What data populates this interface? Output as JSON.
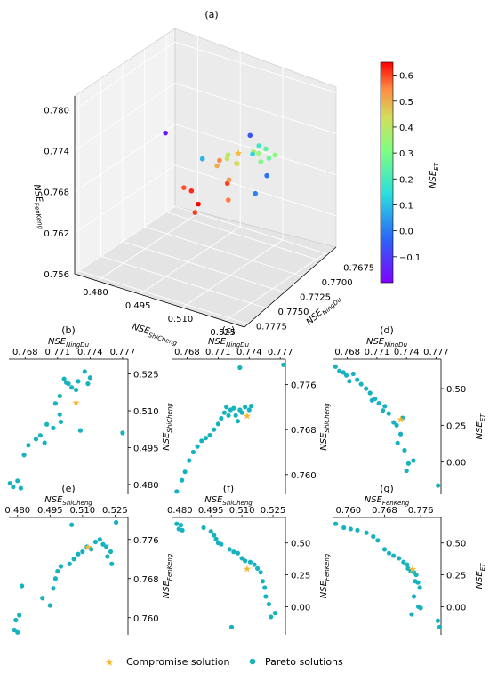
{
  "colors": {
    "pareto": "#16b3bf",
    "compromise": "#f7b731"
  },
  "legend": {
    "compromise": "Compromise solution",
    "pareto": "Pareto solutions",
    "placement": "bottom-center"
  },
  "colorbar": {
    "label": "NSE",
    "label_sub": "ET",
    "ticks": [
      "0.6",
      "0.5",
      "0.4",
      "0.3",
      "0.2",
      "0.1",
      "0.0",
      "−0.1"
    ],
    "range": [
      -0.2,
      0.65
    ],
    "colormap": "rainbow"
  },
  "chart_data": [
    {
      "panel": "(a)",
      "type": "scatter3d",
      "title": "(a)",
      "xlabel": "NSE",
      "xlabel_sub": "ShiCheng",
      "ylabel": "NSE",
      "ylabel_sub": "NingDu",
      "zlabel": "NSE",
      "zlabel_sub": "FenKeng",
      "xticks": [
        "0.480",
        "0.495",
        "0.510",
        "0.525"
      ],
      "yticks": [
        "0.7675",
        "0.7700",
        "0.7725",
        "0.7750",
        "0.7775"
      ],
      "zticks": [
        "0.756",
        "0.762",
        "0.768",
        "0.774",
        "0.780"
      ],
      "xlim": [
        0.472,
        0.532
      ],
      "ylim": [
        0.7665,
        0.778
      ],
      "zlim": [
        0.756,
        0.782
      ],
      "grid": true,
      "color_by": "NSE_ET"
    },
    {
      "panel": "(b)",
      "type": "scatter",
      "title": "(b)",
      "xlabel": "NSE",
      "xlabel_sub": "NingDu",
      "ylabel": "NSE",
      "ylabel_sub": "ShiCheng",
      "xticks": [
        "0.768",
        "0.771",
        "0.774",
        "0.777"
      ],
      "yticks": [
        "0.525",
        "0.510",
        "0.495",
        "0.480"
      ],
      "xlim": [
        0.7665,
        0.7775
      ],
      "ylim": [
        0.476,
        0.531
      ],
      "x_axis_position": "top",
      "y_axis_position": "right",
      "compromise": [
        0.7727,
        0.5135
      ],
      "points": [
        [
          0.7666,
          0.4805
        ],
        [
          0.7669,
          0.479
        ],
        [
          0.7673,
          0.4815
        ],
        [
          0.7676,
          0.4785
        ],
        [
          0.7679,
          0.492
        ],
        [
          0.7683,
          0.496
        ],
        [
          0.769,
          0.4985
        ],
        [
          0.7694,
          0.5
        ],
        [
          0.7698,
          0.497
        ],
        [
          0.77,
          0.5045
        ],
        [
          0.7706,
          0.503
        ],
        [
          0.7712,
          0.5085
        ],
        [
          0.7713,
          0.5055
        ],
        [
          0.7708,
          0.513
        ],
        [
          0.7712,
          0.516
        ],
        [
          0.7716,
          0.523
        ],
        [
          0.7718,
          0.5215
        ],
        [
          0.772,
          0.521
        ],
        [
          0.7723,
          0.5195
        ],
        [
          0.7727,
          0.5185
        ],
        [
          0.7729,
          0.522
        ],
        [
          0.7731,
          0.502
        ],
        [
          0.7735,
          0.526
        ],
        [
          0.774,
          0.5235
        ],
        [
          0.7738,
          0.521
        ],
        [
          0.777,
          0.501
        ]
      ]
    },
    {
      "panel": "(c)",
      "type": "scatter",
      "title": "(c)",
      "xlabel": "NSE",
      "xlabel_sub": "NingDu",
      "ylabel": "NSE",
      "ylabel_sub": "ShiCheng",
      "xticks": [
        "0.768",
        "0.771",
        "0.774",
        "0.777"
      ],
      "yticks": [
        "0.776",
        "0.768",
        "0.760"
      ],
      "xlim": [
        0.7665,
        0.7775
      ],
      "ylim": [
        0.7565,
        0.7805
      ],
      "x_axis_position": "top",
      "y_axis_position": "right",
      "compromise": [
        0.7738,
        0.7705
      ],
      "points": [
        [
          0.767,
          0.757
        ],
        [
          0.7675,
          0.759
        ],
        [
          0.7678,
          0.7605
        ],
        [
          0.7682,
          0.7625
        ],
        [
          0.7686,
          0.764
        ],
        [
          0.769,
          0.765
        ],
        [
          0.7694,
          0.766
        ],
        [
          0.7698,
          0.7665
        ],
        [
          0.7702,
          0.767
        ],
        [
          0.7706,
          0.768
        ],
        [
          0.771,
          0.769
        ],
        [
          0.7713,
          0.77
        ],
        [
          0.7716,
          0.771
        ],
        [
          0.7718,
          0.772
        ],
        [
          0.772,
          0.7705
        ],
        [
          0.7722,
          0.7715
        ],
        [
          0.7725,
          0.7718
        ],
        [
          0.7727,
          0.7705
        ],
        [
          0.7729,
          0.7695
        ],
        [
          0.7731,
          0.7715
        ],
        [
          0.7733,
          0.771
        ],
        [
          0.7736,
          0.772
        ],
        [
          0.774,
          0.7715
        ],
        [
          0.7742,
          0.7722
        ],
        [
          0.7731,
          0.779
        ],
        [
          0.7773,
          0.7795
        ]
      ]
    },
    {
      "panel": "(d)",
      "type": "scatter",
      "title": "(d)",
      "xlabel": "NSE",
      "xlabel_sub": "NingDu",
      "ylabel": "NSE",
      "ylabel_sub": "ET",
      "xticks": [
        "0.768",
        "0.771",
        "0.774",
        "0.777"
      ],
      "yticks": [
        "0.50",
        "0.25",
        "0.00"
      ],
      "xlim": [
        0.7665,
        0.7775
      ],
      "ylim": [
        -0.22,
        0.7
      ],
      "x_axis_position": "top",
      "y_axis_position": "right",
      "compromise": [
        0.7734,
        0.29
      ],
      "points": [
        [
          0.7668,
          0.65
        ],
        [
          0.7672,
          0.62
        ],
        [
          0.7676,
          0.61
        ],
        [
          0.7679,
          0.59
        ],
        [
          0.7682,
          0.55
        ],
        [
          0.7686,
          0.6
        ],
        [
          0.769,
          0.56
        ],
        [
          0.7694,
          0.53
        ],
        [
          0.7699,
          0.5
        ],
        [
          0.7703,
          0.47
        ],
        [
          0.7705,
          0.42
        ],
        [
          0.7708,
          0.43
        ],
        [
          0.7712,
          0.4
        ],
        [
          0.7718,
          0.38
        ],
        [
          0.7716,
          0.35
        ],
        [
          0.7722,
          0.33
        ],
        [
          0.7727,
          0.27
        ],
        [
          0.773,
          0.25
        ],
        [
          0.7734,
          0.19
        ],
        [
          0.7731,
          0.13
        ],
        [
          0.7736,
          0.3
        ],
        [
          0.7738,
          0.08
        ],
        [
          0.7742,
          -0.01
        ],
        [
          0.7747,
          0.01
        ],
        [
          0.774,
          -0.06
        ],
        [
          0.7772,
          -0.16
        ]
      ]
    },
    {
      "panel": "(e)",
      "type": "scatter",
      "title": "(e)",
      "xlabel": "NSE",
      "xlabel_sub": "ShiCheng",
      "ylabel": "NSE",
      "ylabel_sub": "FenKeng",
      "xticks": [
        "0.480",
        "0.495",
        "0.510",
        "0.525"
      ],
      "yticks": [
        "0.776",
        "0.768",
        "0.760"
      ],
      "xlim": [
        0.476,
        0.531
      ],
      "ylim": [
        0.7565,
        0.7805
      ],
      "x_axis_position": "top",
      "y_axis_position": "right",
      "compromise": [
        0.5125,
        0.7745
      ],
      "points": [
        [
          0.4785,
          0.7575
        ],
        [
          0.4792,
          0.7595
        ],
        [
          0.48,
          0.757
        ],
        [
          0.4808,
          0.7605
        ],
        [
          0.482,
          0.7665
        ],
        [
          0.4915,
          0.764
        ],
        [
          0.495,
          0.7625
        ],
        [
          0.4965,
          0.766
        ],
        [
          0.4975,
          0.768
        ],
        [
          0.4985,
          0.7695
        ],
        [
          0.5,
          0.7705
        ],
        [
          0.504,
          0.771
        ],
        [
          0.506,
          0.772
        ],
        [
          0.508,
          0.773
        ],
        [
          0.51,
          0.7735
        ],
        [
          0.512,
          0.7745
        ],
        [
          0.514,
          0.774
        ],
        [
          0.516,
          0.7755
        ],
        [
          0.518,
          0.776
        ],
        [
          0.5195,
          0.775
        ],
        [
          0.521,
          0.7745
        ],
        [
          0.5215,
          0.7725
        ],
        [
          0.523,
          0.7735
        ],
        [
          0.5235,
          0.771
        ],
        [
          0.505,
          0.779
        ],
        [
          0.5255,
          0.7795
        ]
      ]
    },
    {
      "panel": "(f)",
      "type": "scatter",
      "title": "(f)",
      "xlabel": "NSE",
      "xlabel_sub": "ShiCheng",
      "ylabel": "NSE",
      "ylabel_sub": "FenKeng",
      "xticks": [
        "0.480",
        "0.495",
        "0.510",
        "0.525"
      ],
      "yticks": [
        "0.50",
        "0.25",
        "0.00"
      ],
      "xlim": [
        0.476,
        0.531
      ],
      "ylim": [
        -0.22,
        0.7
      ],
      "x_axis_position": "top",
      "y_axis_position": "right",
      "compromise": [
        0.5125,
        0.3
      ],
      "points": [
        [
          0.4785,
          0.65
        ],
        [
          0.4795,
          0.61
        ],
        [
          0.4805,
          0.64
        ],
        [
          0.4812,
          0.6
        ],
        [
          0.4915,
          0.62
        ],
        [
          0.495,
          0.59
        ],
        [
          0.4965,
          0.56
        ],
        [
          0.4975,
          0.53
        ],
        [
          0.4985,
          0.5
        ],
        [
          0.5,
          0.49
        ],
        [
          0.504,
          0.45
        ],
        [
          0.506,
          0.43
        ],
        [
          0.508,
          0.42
        ],
        [
          0.51,
          0.38
        ],
        [
          0.5115,
          0.36
        ],
        [
          0.514,
          0.35
        ],
        [
          0.516,
          0.33
        ],
        [
          0.5175,
          0.3
        ],
        [
          0.519,
          0.27
        ],
        [
          0.52,
          0.2
        ],
        [
          0.521,
          0.15
        ],
        [
          0.5215,
          0.08
        ],
        [
          0.523,
          0.02
        ],
        [
          0.524,
          -0.08
        ],
        [
          0.526,
          -0.05
        ],
        [
          0.505,
          -0.16
        ]
      ]
    },
    {
      "panel": "(g)",
      "type": "scatter",
      "title": "(g)",
      "xlabel": "NSE",
      "xlabel_sub": "FenKeng",
      "ylabel": "NSE",
      "ylabel_sub": "ET",
      "xticks": [
        "0.760",
        "0.768",
        "0.776"
      ],
      "yticks": [
        "0.50",
        "0.25",
        "0.00"
      ],
      "xlim": [
        0.7565,
        0.7805
      ],
      "ylim": [
        -0.22,
        0.7
      ],
      "x_axis_position": "top",
      "y_axis_position": "right",
      "compromise": [
        0.7742,
        0.295
      ],
      "points": [
        [
          0.7572,
          0.65
        ],
        [
          0.759,
          0.62
        ],
        [
          0.7605,
          0.61
        ],
        [
          0.762,
          0.6
        ],
        [
          0.764,
          0.58
        ],
        [
          0.7655,
          0.55
        ],
        [
          0.7665,
          0.52
        ],
        [
          0.768,
          0.45
        ],
        [
          0.769,
          0.42
        ],
        [
          0.77,
          0.4
        ],
        [
          0.7712,
          0.38
        ],
        [
          0.7722,
          0.35
        ],
        [
          0.773,
          0.33
        ],
        [
          0.7738,
          0.28
        ],
        [
          0.7745,
          0.27
        ],
        [
          0.775,
          0.25
        ],
        [
          0.7748,
          0.2
        ],
        [
          0.7754,
          0.19
        ],
        [
          0.7758,
          0.15
        ],
        [
          0.7745,
          0.08
        ],
        [
          0.7755,
          0.0
        ],
        [
          0.776,
          -0.01
        ],
        [
          0.774,
          -0.06
        ],
        [
          0.7798,
          -0.11
        ],
        [
          0.7802,
          -0.16
        ],
        [
          0.7732,
          0.3
        ]
      ]
    }
  ]
}
